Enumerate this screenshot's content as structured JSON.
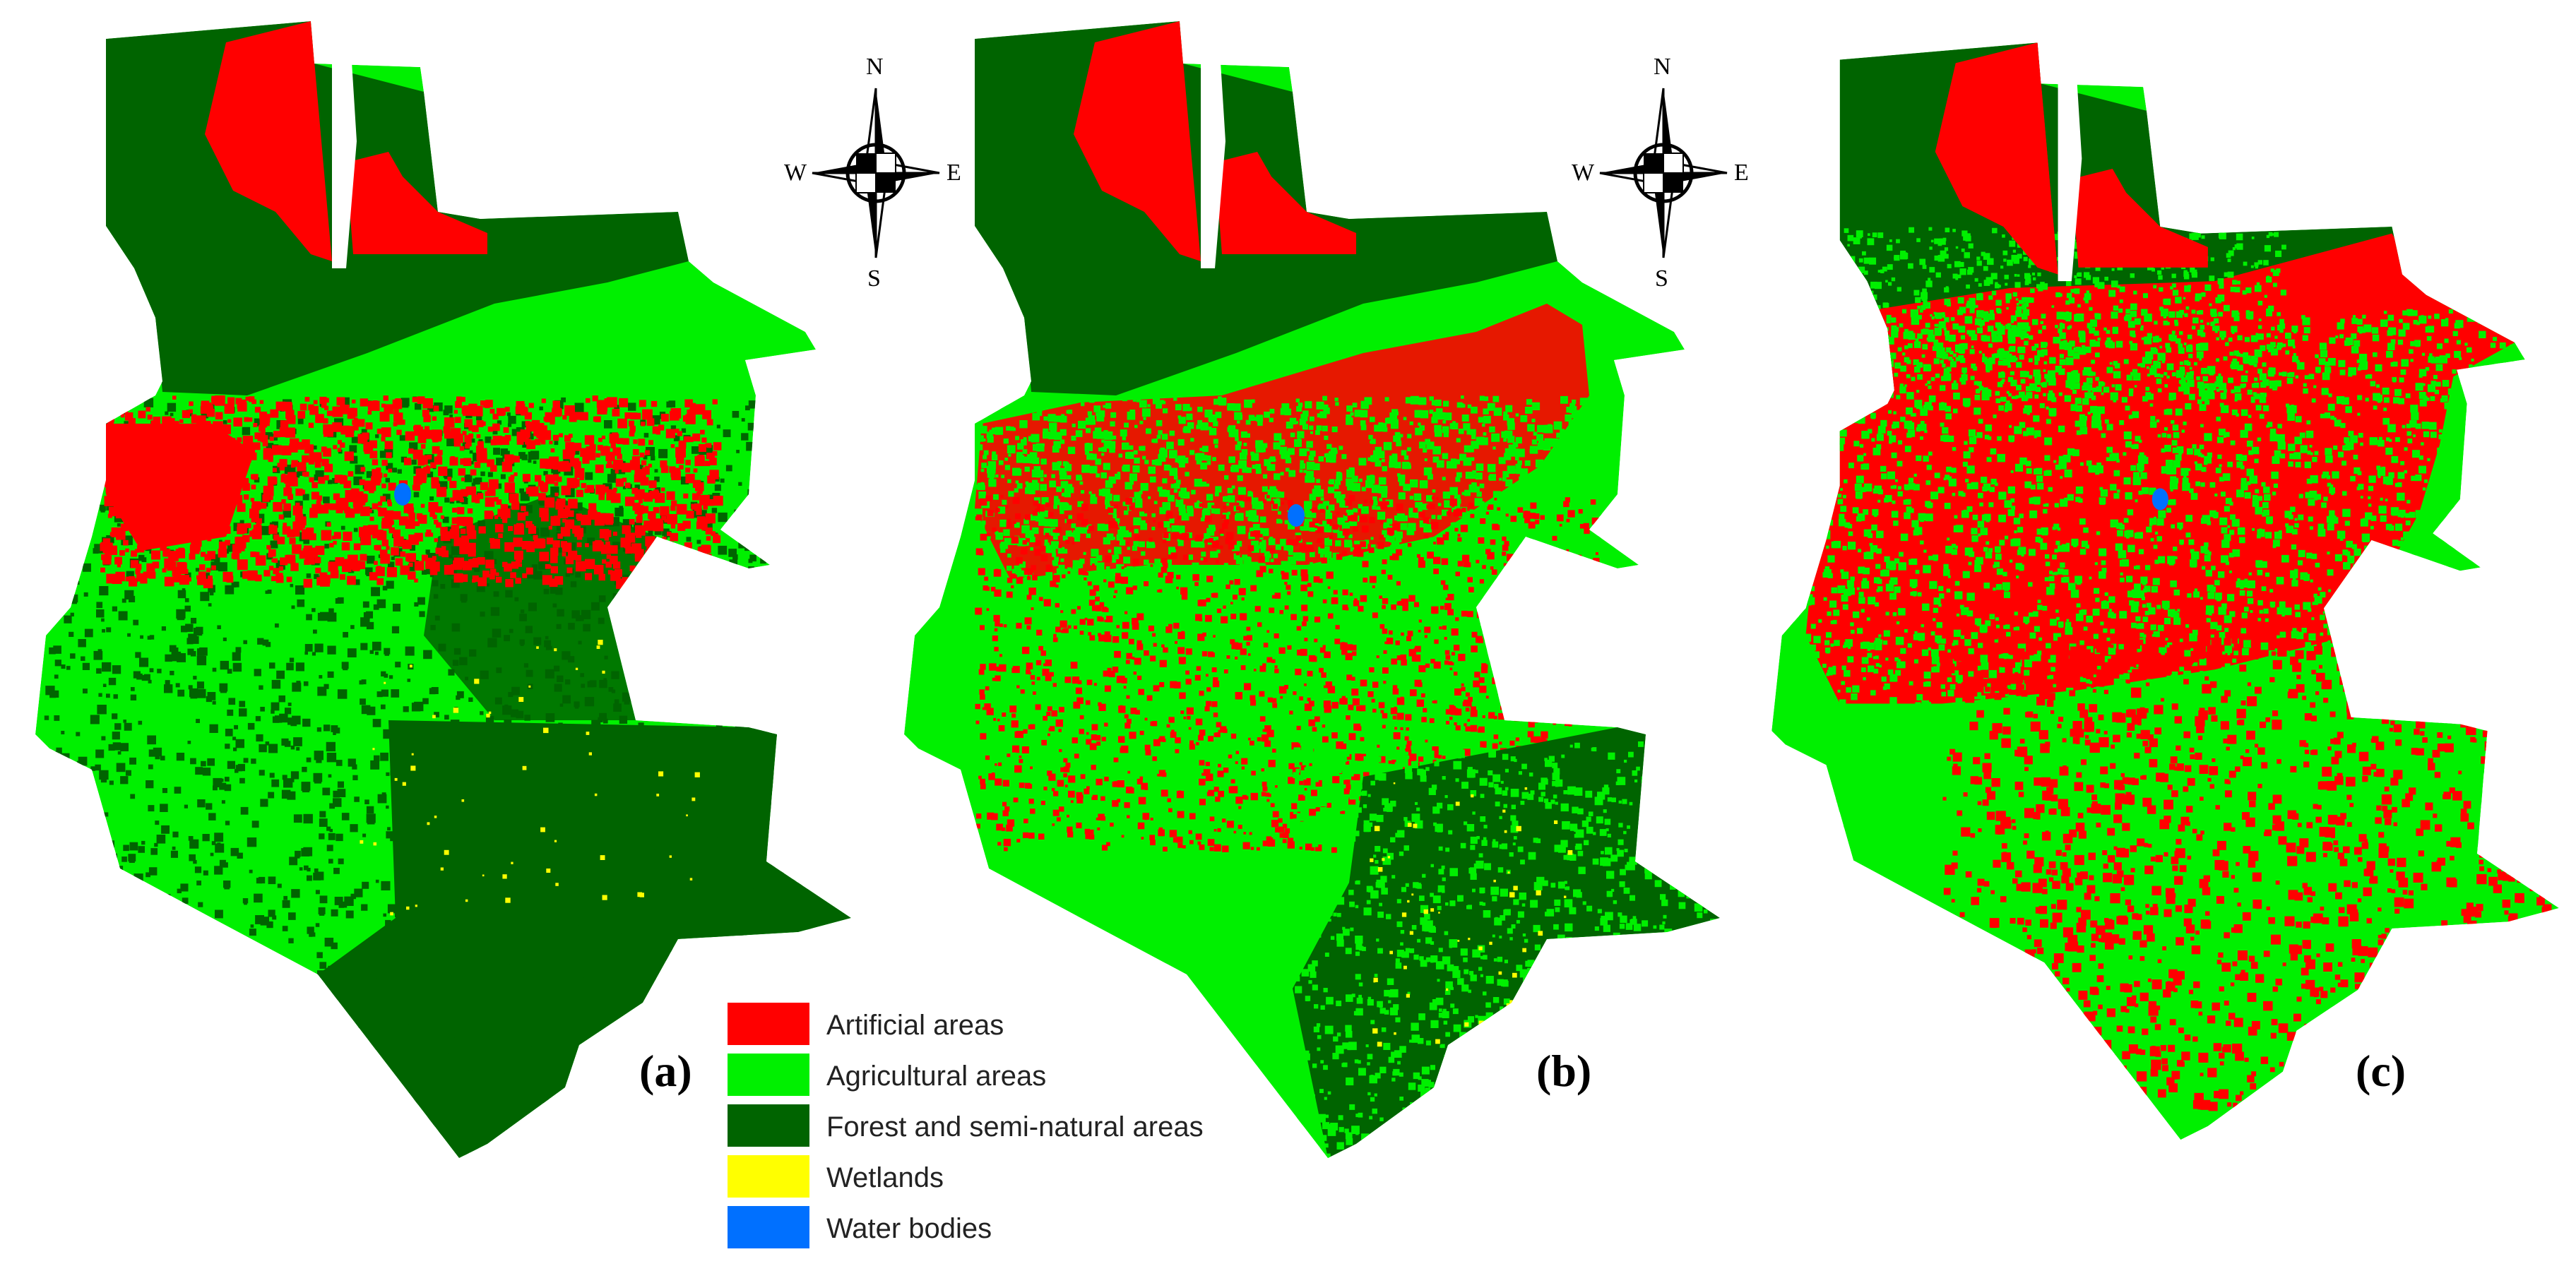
{
  "legend": {
    "items": [
      {
        "key": "artificial",
        "label": "Artificial areas",
        "color": "#ff0000"
      },
      {
        "key": "agricultural",
        "label": "Agricultural areas",
        "color": "#00f000"
      },
      {
        "key": "forest",
        "label": "Forest and semi-natural areas",
        "color": "#006400"
      },
      {
        "key": "wetlands",
        "label": "Wetlands",
        "color": "#ffff00"
      },
      {
        "key": "water",
        "label": "Water bodies",
        "color": "#0070ff"
      }
    ]
  },
  "compass": {
    "n": "N",
    "s": "S",
    "e": "E",
    "w": "W",
    "icon": "compass-rose-icon"
  },
  "panels": [
    {
      "id": "a",
      "label": "(a)"
    },
    {
      "id": "b",
      "label": "(b)"
    },
    {
      "id": "c",
      "label": "(c)"
    }
  ]
}
